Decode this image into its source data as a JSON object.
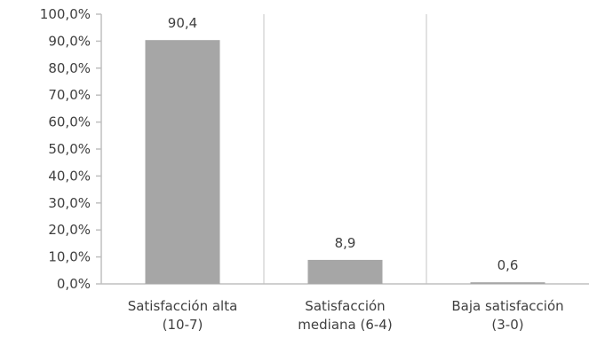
{
  "chart_data": {
    "type": "bar",
    "categories": [
      [
        "Satisfacción alta",
        "(10-7)"
      ],
      [
        "Satisfacción",
        "mediana (6-4)"
      ],
      [
        "Baja satisfacción",
        "(3-0)"
      ]
    ],
    "values": [
      90.4,
      8.9,
      0.6
    ],
    "data_labels": [
      "90,4",
      "8,9",
      "0,6"
    ],
    "ylim": [
      0,
      100
    ],
    "yticks": [
      {
        "value": 0,
        "label": "0,0%"
      },
      {
        "value": 10,
        "label": "10,0%"
      },
      {
        "value": 20,
        "label": "20,0%"
      },
      {
        "value": 30,
        "label": "30,0%"
      },
      {
        "value": 40,
        "label": "40,0%"
      },
      {
        "value": 50,
        "label": "50,0%"
      },
      {
        "value": 60,
        "label": "60,0%"
      },
      {
        "value": 70,
        "label": "70,0%"
      },
      {
        "value": 80,
        "label": "80,0%"
      },
      {
        "value": 90,
        "label": "90,0%"
      },
      {
        "value": 100,
        "label": "100,0%"
      }
    ],
    "title": "",
    "xlabel": "",
    "ylabel": "",
    "grid": "vertical separators between categories",
    "legend": "none",
    "colors": {
      "bar": "#a6a6a6",
      "axis": "#bfbfbf",
      "grid": "#d9d9d9",
      "text": "#404040"
    }
  }
}
